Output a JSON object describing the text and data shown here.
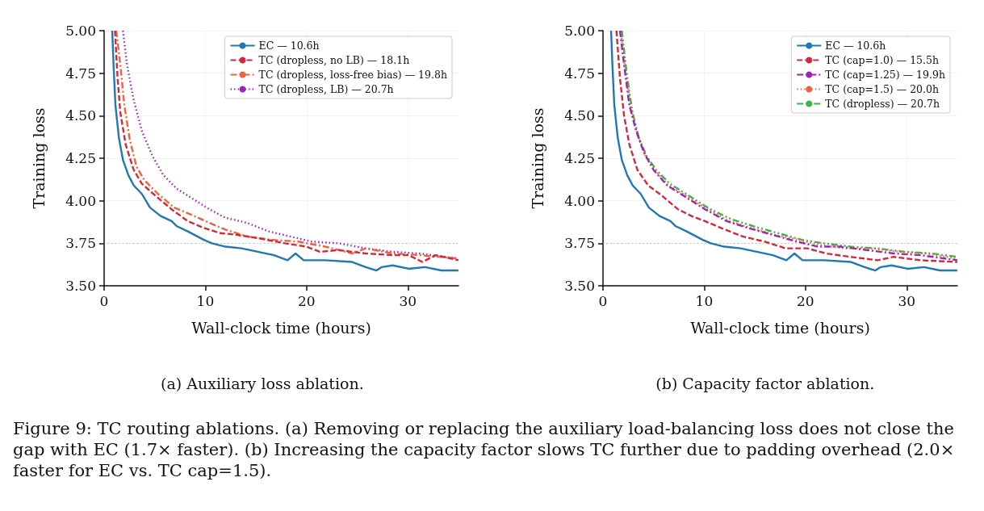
{
  "chart_data": [
    {
      "type": "line",
      "title": "(a) Auxiliary loss ablation.",
      "xlabel": "Wall-clock time (hours)",
      "ylabel": "Training loss",
      "xlim": [
        0,
        35
      ],
      "xticks": [
        0,
        10,
        20,
        30
      ],
      "ylim": [
        3.5,
        5.0
      ],
      "yticks": [
        {
          "value": 3.5,
          "label": "3.50"
        },
        {
          "value": 3.75,
          "label": "3.75"
        },
        {
          "value": 4.0,
          "label": "4.00"
        },
        {
          "value": 4.25,
          "label": "4.25"
        },
        {
          "value": 4.5,
          "label": "4.50"
        },
        {
          "value": 4.75,
          "label": "4.75"
        },
        {
          "value": 5.0,
          "label": "5.00"
        }
      ],
      "grid": true,
      "legend": "top right",
      "marker": "none",
      "ref_lines": [
        {
          "axis": "y",
          "value": 3.75,
          "color": "#aaaaaa",
          "line_style": "dotted"
        }
      ],
      "series": [
        {
          "name": "EC — 10.6h",
          "color": "#1f77b4",
          "line_style": "solid",
          "x": [
            0.8,
            0.93,
            1.12,
            1.46,
            1.86,
            2.4,
            2.93,
            3.73,
            4.53,
            5.59,
            6.66,
            7.19,
            8.26,
            9.85,
            10.65,
            11.98,
            13.58,
            15.18,
            16.78,
            18.11,
            18.91,
            19.71,
            21.84,
            24.5,
            25.83,
            26.9,
            27.43,
            28.5,
            30.09,
            31.69,
            33.29,
            34.99
          ],
          "values": [
            5.0,
            4.8,
            4.56,
            4.37,
            4.24,
            4.15,
            4.09,
            4.04,
            3.96,
            3.91,
            3.88,
            3.85,
            3.82,
            3.77,
            3.75,
            3.73,
            3.72,
            3.7,
            3.68,
            3.65,
            3.69,
            3.65,
            3.65,
            3.64,
            3.61,
            3.59,
            3.61,
            3.62,
            3.6,
            3.61,
            3.59,
            3.59
          ]
        },
        {
          "name": "TC (dropless, no LB) — 18.1h",
          "color": "#d62839",
          "line_style": "dashed",
          "x": [
            1.07,
            1.33,
            1.6,
            2.13,
            2.93,
            3.73,
            5.06,
            6.66,
            8.26,
            9.85,
            11.45,
            13.05,
            15.18,
            17.84,
            19.97,
            21.3,
            23.17,
            25.83,
            28.5,
            30.09,
            31.43,
            32.76,
            34.99
          ],
          "values": [
            5.0,
            4.72,
            4.52,
            4.33,
            4.18,
            4.1,
            4.03,
            3.95,
            3.88,
            3.84,
            3.81,
            3.8,
            3.78,
            3.75,
            3.73,
            3.7,
            3.71,
            3.69,
            3.68,
            3.68,
            3.64,
            3.68,
            3.65
          ]
        },
        {
          "name": "TC (dropless, loss-free bias) — 19.8h",
          "color": "#f4603a",
          "line_style": "dashdot",
          "x": [
            1.2,
            1.6,
            2.0,
            2.53,
            3.2,
            3.99,
            5.33,
            6.92,
            8.52,
            10.39,
            11.98,
            14.11,
            16.51,
            19.17,
            21.84,
            24.5,
            25.83,
            28.5,
            31.16,
            34.99
          ],
          "values": [
            5.0,
            4.8,
            4.56,
            4.36,
            4.2,
            4.12,
            4.04,
            3.96,
            3.92,
            3.87,
            3.83,
            3.79,
            3.77,
            3.76,
            3.73,
            3.69,
            3.72,
            3.69,
            3.68,
            3.66
          ]
        },
        {
          "name": "TC (dropless, LB) — 20.7h",
          "color": "#a020c0",
          "line_style": "dotted",
          "x": [
            1.86,
            2.26,
            2.93,
            3.73,
            4.79,
            5.86,
            7.19,
            8.79,
            10.39,
            11.98,
            14.11,
            16.24,
            18.37,
            20.5,
            23.17,
            25.83,
            28.5,
            31.16,
            34.99
          ],
          "values": [
            5.0,
            4.8,
            4.59,
            4.41,
            4.26,
            4.15,
            4.07,
            4.01,
            3.95,
            3.9,
            3.87,
            3.82,
            3.79,
            3.76,
            3.75,
            3.72,
            3.7,
            3.69,
            3.66
          ]
        }
      ]
    },
    {
      "type": "line",
      "title": "(b) Capacity factor ablation.",
      "xlabel": "Wall-clock time (hours)",
      "ylabel": "Training loss",
      "xlim": [
        0,
        35
      ],
      "xticks": [
        0,
        10,
        20,
        30
      ],
      "ylim": [
        3.5,
        5.0
      ],
      "yticks": [
        {
          "value": 3.5,
          "label": "3.50"
        },
        {
          "value": 3.75,
          "label": "3.75"
        },
        {
          "value": 4.0,
          "label": "4.00"
        },
        {
          "value": 4.25,
          "label": "4.25"
        },
        {
          "value": 4.5,
          "label": "4.50"
        },
        {
          "value": 4.75,
          "label": "4.75"
        },
        {
          "value": 5.0,
          "label": "5.00"
        }
      ],
      "grid": true,
      "legend": "top right",
      "marker": "none",
      "ref_lines": [
        {
          "axis": "y",
          "value": 3.75,
          "color": "#aaaaaa",
          "line_style": "dotted"
        }
      ],
      "annotations": [
        "Figure 9: TC routing ablations. (a) Removing or replacing the auxiliary load-balancing loss does not close the gap with EC (1.7× faster). (b) Increasing the capacity factor slows TC further due to padding overhead (2.0× faster for EC vs. TC cap=1.5)."
      ],
      "series": [
        {
          "name": "EC — 10.6h",
          "color": "#1f77b4",
          "line_style": "solid",
          "x": [
            0.8,
            0.93,
            1.12,
            1.46,
            1.86,
            2.4,
            2.93,
            3.73,
            4.53,
            5.59,
            6.66,
            7.19,
            8.26,
            9.85,
            10.65,
            11.98,
            13.58,
            15.18,
            16.78,
            18.11,
            18.91,
            19.71,
            21.84,
            24.5,
            25.83,
            26.9,
            27.43,
            28.5,
            30.09,
            31.69,
            33.29,
            34.99
          ],
          "values": [
            5.0,
            4.8,
            4.56,
            4.37,
            4.24,
            4.15,
            4.09,
            4.04,
            3.96,
            3.91,
            3.88,
            3.85,
            3.82,
            3.77,
            3.75,
            3.73,
            3.72,
            3.7,
            3.68,
            3.65,
            3.69,
            3.65,
            3.65,
            3.64,
            3.61,
            3.59,
            3.61,
            3.62,
            3.6,
            3.61,
            3.59,
            3.59
          ]
        },
        {
          "name": "TC (cap=1.0) — 15.5h",
          "color": "#d62839",
          "line_style": "dashed",
          "x": [
            1.33,
            1.68,
            2.08,
            2.61,
            3.41,
            4.47,
            5.81,
            7.4,
            8.74,
            10.07,
            11.66,
            13.79,
            15.93,
            18.06,
            20.19,
            22.05,
            24.45,
            27.11,
            28.71,
            31.37,
            35.0
          ],
          "values": [
            5.0,
            4.72,
            4.5,
            4.33,
            4.18,
            4.09,
            4.03,
            3.95,
            3.91,
            3.88,
            3.84,
            3.79,
            3.76,
            3.72,
            3.72,
            3.69,
            3.67,
            3.65,
            3.67,
            3.65,
            3.64
          ]
        },
        {
          "name": "TC (cap=1.25) — 19.9h",
          "color": "#9b27b0",
          "line_style": "dashdot",
          "x": [
            1.68,
            2.08,
            2.61,
            3.28,
            4.07,
            5.01,
            6.34,
            7.94,
            10.07,
            12.2,
            14.33,
            16.72,
            19.12,
            21.25,
            23.38,
            26.05,
            28.71,
            31.37,
            35.0
          ],
          "values": [
            5.0,
            4.8,
            4.56,
            4.41,
            4.28,
            4.18,
            4.09,
            4.03,
            3.95,
            3.88,
            3.84,
            3.8,
            3.76,
            3.73,
            3.73,
            3.71,
            3.69,
            3.68,
            3.65
          ]
        },
        {
          "name": "TC (cap=1.5) — 20.0h",
          "color": "#f4603a",
          "line_style": "dotted",
          "x": [
            1.76,
            2.21,
            2.74,
            3.41,
            4.21,
            5.14,
            6.47,
            8.2,
            10.33,
            12.46,
            14.59,
            16.99,
            19.39,
            21.52,
            23.91,
            26.58,
            29.24,
            31.9,
            35.0
          ],
          "values": [
            5.0,
            4.77,
            4.55,
            4.39,
            4.26,
            4.18,
            4.09,
            4.03,
            3.95,
            3.88,
            3.84,
            3.8,
            3.77,
            3.74,
            3.72,
            3.72,
            3.7,
            3.69,
            3.66
          ]
        },
        {
          "name": "TC (dropless) — 20.7h",
          "color": "#3cb44b",
          "line_style": "dashdotdot",
          "x": [
            1.86,
            2.34,
            2.88,
            3.54,
            4.34,
            5.27,
            6.6,
            8.47,
            10.6,
            12.73,
            14.86,
            17.26,
            19.65,
            21.78,
            24.45,
            27.11,
            29.77,
            32.44,
            35.0
          ],
          "values": [
            5.0,
            4.75,
            4.53,
            4.37,
            4.26,
            4.18,
            4.1,
            4.03,
            3.95,
            3.89,
            3.85,
            3.81,
            3.77,
            3.75,
            3.73,
            3.72,
            3.7,
            3.69,
            3.67
          ]
        }
      ]
    }
  ]
}
